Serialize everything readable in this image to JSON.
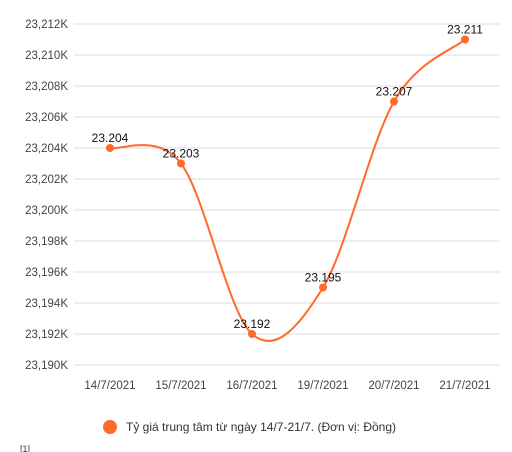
{
  "chart_data": {
    "type": "line",
    "title": "",
    "xlabel": "",
    "ylabel": "",
    "categories": [
      "14/7/2021",
      "15/7/2021",
      "16/7/2021",
      "19/7/2021",
      "20/7/2021",
      "21/7/2021"
    ],
    "series": [
      {
        "name": "Tỷ giá trung tâm từ ngày 14/7-21/7. (Đơn vị: Đồng)",
        "values": [
          23.204,
          23.203,
          23.192,
          23.195,
          23.207,
          23.211
        ],
        "data_labels": [
          "23.204",
          "23.203",
          "23.192",
          "23.195",
          "23.207",
          "23.211"
        ],
        "color": "#ff6a2a"
      }
    ],
    "y_ticks": [
      "23,190K",
      "23,192K",
      "23,194K",
      "23,196K",
      "23,198K",
      "23,200K",
      "23,202K",
      "23,204K",
      "23,206K",
      "23,208K",
      "23,210K",
      "23,212K"
    ],
    "ylim": [
      23.19,
      23.212
    ],
    "grid": true,
    "legend_position": "bottom",
    "line_style": "smooth"
  },
  "legend": {
    "label": "Tỷ giá trung tâm từ ngày 14/7-21/7. (Đơn vị: Đồng)"
  },
  "corner_text": "[1]",
  "colors": {
    "series": "#ff6a2a",
    "grid": "#dddddd",
    "axis_text": "#444444"
  }
}
